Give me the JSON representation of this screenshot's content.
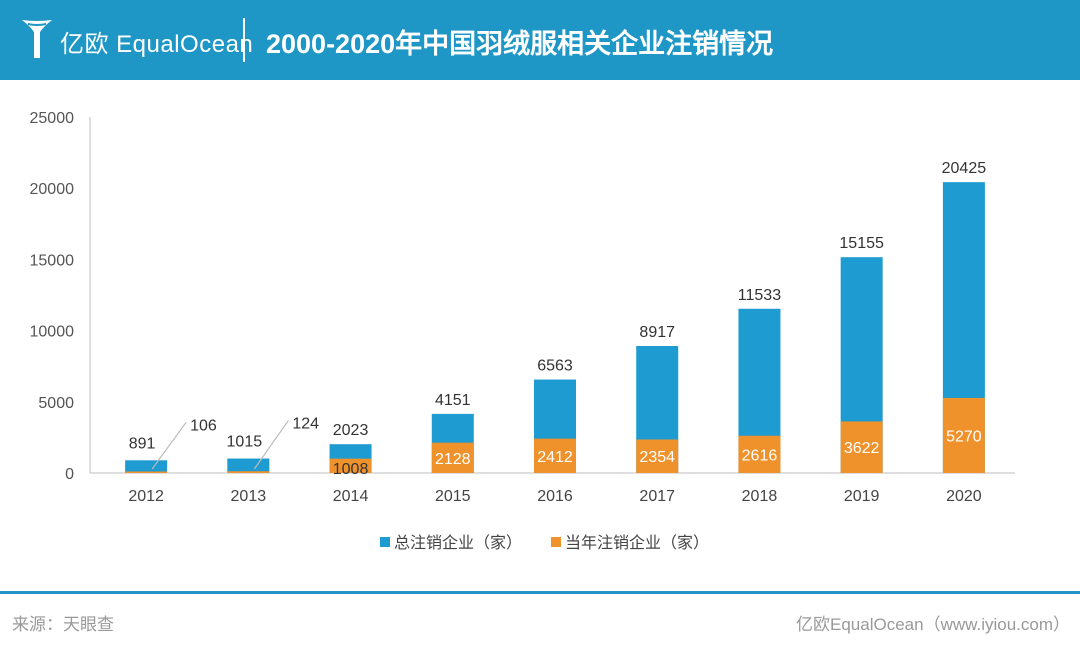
{
  "header": {
    "logo_text": "亿欧 EqualOcean",
    "title": "2000-2020年中国羽绒服相关企业注销情况"
  },
  "footer": {
    "source": "来源：天眼查",
    "credit": "亿欧EqualOcean（www.iyiou.com）"
  },
  "colors": {
    "header_bg": "#1f97c6",
    "total_series": "#1e9bd0",
    "annual_series": "#f0922c",
    "footer_text": "#999999"
  },
  "chart_data": {
    "type": "bar",
    "stacked": "overlay",
    "categories": [
      "2012",
      "2013",
      "2014",
      "2015",
      "2016",
      "2017",
      "2018",
      "2019",
      "2020"
    ],
    "ylim": [
      0,
      25000
    ],
    "yticks": [
      0,
      5000,
      10000,
      15000,
      20000,
      25000
    ],
    "grid": false,
    "legend_position": "bottom",
    "series": [
      {
        "name": "总注销企业（家）",
        "color": "#1e9bd0",
        "values": [
          891,
          1015,
          2023,
          4151,
          6563,
          8917,
          11533,
          15155,
          20425
        ]
      },
      {
        "name": "当年注销企业（家）",
        "color": "#f0922c",
        "values": [
          106,
          124,
          1008,
          2128,
          2412,
          2354,
          2616,
          3622,
          5270
        ]
      }
    ]
  }
}
